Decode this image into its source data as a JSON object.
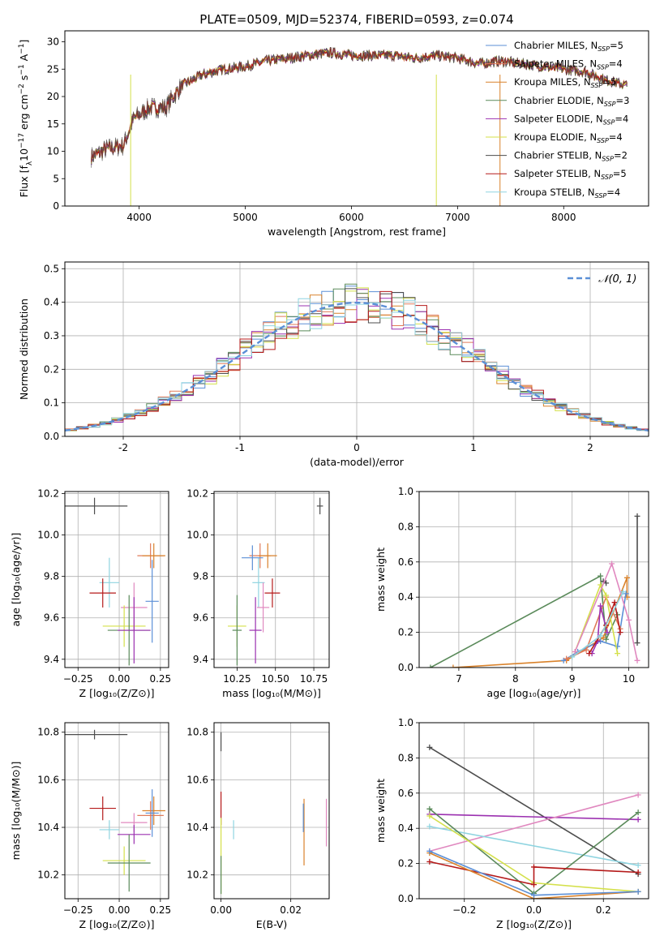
{
  "figure_title": "PLATE=0509, MJD=52374, FIBERID=0593, z=0.074",
  "colors": {
    "Chabrier MILES": "#5b8fd6",
    "Salpeter MILES": "#e07b5a",
    "Kroupa MILES": "#d9822b",
    "Chabrier ELODIE": "#5a8a5a",
    "Salpeter ELODIE": "#9b30b0",
    "Kroupa ELODIE": "#d4e04a",
    "Chabrier STELIB": "#4d4d4d",
    "Salpeter STELIB": "#b51a1a",
    "Kroupa STELIB": "#8fd4e0",
    "gauss": "#5b8fd6",
    "pink": "#e088bf"
  },
  "chart_data": [
    {
      "id": "spectrum",
      "type": "line",
      "xlabel": "wavelength [Angstrom, rest frame]",
      "ylabel_main": "Flux [f",
      "ylabel_sub": "λ",
      "ylabel_rest": "10",
      "ylabel_exp1": "−17",
      "ylabel_unit": " erg cm",
      "ylabel_exp2": "−2",
      "ylabel_s": " s",
      "ylabel_exp3": "−1",
      "ylabel_A": " A",
      "ylabel_exp4": "−1",
      "ylabel_end": "]",
      "xlim": [
        3300,
        8800
      ],
      "ylim": [
        0,
        32
      ],
      "xticks": [
        4000,
        5000,
        6000,
        7000,
        8000
      ],
      "yticks": [
        0,
        5,
        10,
        15,
        20,
        25,
        30
      ],
      "continuum": [
        [
          3550,
          9
        ],
        [
          3700,
          10.5
        ],
        [
          3850,
          11
        ],
        [
          3950,
          16
        ],
        [
          4100,
          18
        ],
        [
          4250,
          18
        ],
        [
          4400,
          22
        ],
        [
          4600,
          24
        ],
        [
          4800,
          25
        ],
        [
          5000,
          25.5
        ],
        [
          5200,
          26.5
        ],
        [
          5400,
          27
        ],
        [
          5600,
          27.5
        ],
        [
          5800,
          28
        ],
        [
          6000,
          27.5
        ],
        [
          6200,
          27.5
        ],
        [
          6400,
          27.5
        ],
        [
          6600,
          27
        ],
        [
          6800,
          27.5
        ],
        [
          7000,
          27
        ],
        [
          7200,
          26
        ],
        [
          7400,
          26.5
        ],
        [
          7600,
          26
        ],
        [
          7800,
          25.5
        ],
        [
          8000,
          25
        ],
        [
          8200,
          24.5
        ],
        [
          8400,
          23
        ],
        [
          8600,
          22
        ]
      ],
      "legend": [
        {
          "key": "Chabrier MILES",
          "label": "Chabrier MILES, N",
          "n": "5"
        },
        {
          "key": "Salpeter MILES",
          "label": "Salpeter MILES, N",
          "n": "4"
        },
        {
          "key": "Kroupa MILES",
          "label": "Kroupa MILES, N",
          "n": "5"
        },
        {
          "key": "Chabrier ELODIE",
          "label": "Chabrier ELODIE, N",
          "n": "3"
        },
        {
          "key": "Salpeter ELODIE",
          "label": "Salpeter ELODIE, N",
          "n": "4"
        },
        {
          "key": "Kroupa ELODIE",
          "label": "Kroupa ELODIE, N",
          "n": "4"
        },
        {
          "key": "Chabrier STELIB",
          "label": "Chabrier STELIB, N",
          "n": "2"
        },
        {
          "key": "Salpeter STELIB",
          "label": "Salpeter STELIB, N",
          "n": "5"
        },
        {
          "key": "Kroupa STELIB",
          "label": "Kroupa STELIB, N",
          "n": "4"
        }
      ],
      "legend_sub": "SSP",
      "legend_placement": "top-right"
    },
    {
      "id": "residuals",
      "type": "histogram",
      "xlabel": "(data-model)/error",
      "ylabel": "Normed distribution",
      "xlim": [
        -2.5,
        2.5
      ],
      "ylim": [
        0,
        0.52
      ],
      "xticks": [
        -2,
        -1,
        0,
        1,
        2
      ],
      "yticks": [
        0.0,
        0.1,
        0.2,
        0.3,
        0.4,
        0.5
      ],
      "grid": true,
      "bin_width": 0.1,
      "legend": "𝒩(0, 1)",
      "legend_placement": "top-right",
      "gaussian": {
        "mu": 0,
        "sigma": 1
      }
    },
    {
      "id": "age_vs_Z",
      "type": "errorbar",
      "xlabel": "Z [log₁₀(Z/Z⊙)]",
      "ylabel": "age  [log₁₀(age/yr)]",
      "xlim": [
        -0.33,
        0.3
      ],
      "ylim": [
        9.36,
        10.21
      ],
      "xticks": [
        -0.25,
        0.0,
        0.25
      ],
      "xticklabels": [
        "−0.25",
        "0.00",
        "0.25"
      ],
      "yticks": [
        9.4,
        9.6,
        9.8,
        10.0,
        10.2
      ],
      "grid": true,
      "points": [
        {
          "c": "Chabrier STELIB",
          "x": -0.15,
          "y": 10.14,
          "xe": 0.2,
          "ye": 0.04
        },
        {
          "c": "Kroupa STELIB",
          "x": -0.06,
          "y": 9.77,
          "xe": 0.06,
          "ye": 0.12
        },
        {
          "c": "Salpeter STELIB",
          "x": -0.1,
          "y": 9.72,
          "xe": 0.08,
          "ye": 0.07
        },
        {
          "c": "pink",
          "x": 0.09,
          "y": 9.65,
          "xe": 0.08,
          "ye": 0.12
        },
        {
          "c": "Kroupa ELODIE",
          "x": 0.03,
          "y": 9.56,
          "xe": 0.13,
          "ye": 0.1
        },
        {
          "c": "Chabrier ELODIE",
          "x": 0.06,
          "y": 9.54,
          "xe": 0.13,
          "ye": 0.17
        },
        {
          "c": "Salpeter ELODIE",
          "x": 0.09,
          "y": 9.54,
          "xe": 0.1,
          "ye": 0.16
        },
        {
          "c": "Salpeter MILES",
          "x": 0.19,
          "y": 9.9,
          "xe": 0.08,
          "ye": 0.06
        },
        {
          "c": "Kroupa MILES",
          "x": 0.21,
          "y": 9.9,
          "xe": 0.07,
          "ye": 0.06
        },
        {
          "c": "Chabrier MILES",
          "x": 0.2,
          "y": 9.68,
          "xe": 0.04,
          "ye": 0.2
        }
      ]
    },
    {
      "id": "age_vs_mass",
      "type": "errorbar",
      "xlabel": "mass [log₁₀(M/M⊙)]",
      "xlim": [
        10.1,
        10.85
      ],
      "ylim": [
        9.36,
        10.21
      ],
      "xticks": [
        10.25,
        10.5,
        10.75
      ],
      "xticklabels": [
        "10.25",
        "10.50",
        "10.75"
      ],
      "yticks": [
        9.4,
        9.6,
        9.8,
        10.0,
        10.2
      ],
      "grid": true,
      "points": [
        {
          "c": "Chabrier STELIB",
          "x": 10.79,
          "y": 10.14,
          "xe": 0.02,
          "ye": 0.04
        },
        {
          "c": "Kroupa STELIB",
          "x": 10.39,
          "y": 9.77,
          "xe": 0.04,
          "ye": 0.12
        },
        {
          "c": "Salpeter STELIB",
          "x": 10.48,
          "y": 9.72,
          "xe": 0.05,
          "ye": 0.07
        },
        {
          "c": "pink",
          "x": 10.42,
          "y": 9.65,
          "xe": 0.04,
          "ye": 0.12
        },
        {
          "c": "Kroupa ELODIE",
          "x": 10.25,
          "y": 9.56,
          "xe": 0.06,
          "ye": 0.1
        },
        {
          "c": "Chabrier ELODIE",
          "x": 10.25,
          "y": 9.54,
          "xe": 0.03,
          "ye": 0.17
        },
        {
          "c": "Salpeter ELODIE",
          "x": 10.37,
          "y": 9.54,
          "xe": 0.04,
          "ye": 0.16
        },
        {
          "c": "Salpeter MILES",
          "x": 10.4,
          "y": 9.9,
          "xe": 0.07,
          "ye": 0.06
        },
        {
          "c": "Kroupa MILES",
          "x": 10.45,
          "y": 9.9,
          "xe": 0.06,
          "ye": 0.06
        },
        {
          "c": "Chabrier MILES",
          "x": 10.35,
          "y": 9.89,
          "xe": 0.07,
          "ye": 0.06
        }
      ]
    },
    {
      "id": "weight_vs_age",
      "type": "line",
      "xlabel": "age  [log₁₀(age/yr)]",
      "ylabel": "mass weight",
      "xlim": [
        6.3,
        10.35
      ],
      "ylim": [
        0,
        1
      ],
      "xticks": [
        7,
        8,
        9,
        10
      ],
      "yticks": [
        0.0,
        0.2,
        0.4,
        0.6,
        0.8,
        1.0
      ],
      "grid": true,
      "series": [
        {
          "c": "Chabrier ELODIE",
          "pts": [
            [
              6.5,
              0.0
            ],
            [
              9.5,
              0.52
            ],
            [
              9.6,
              0.16
            ],
            [
              9.8,
              0.3
            ]
          ]
        },
        {
          "c": "Kroupa MILES",
          "pts": [
            [
              6.9,
              0.0
            ],
            [
              8.9,
              0.04
            ],
            [
              9.55,
              0.17
            ],
            [
              9.97,
              0.51
            ],
            [
              9.97,
              0.4
            ]
          ]
        },
        {
          "c": "Chabrier MILES",
          "pts": [
            [
              8.85,
              0.04
            ],
            [
              9.1,
              0.09
            ],
            [
              9.5,
              0.15
            ],
            [
              9.8,
              0.12
            ],
            [
              9.95,
              0.42
            ]
          ]
        },
        {
          "c": "Salpeter MILES",
          "pts": [
            [
              8.9,
              0.05
            ],
            [
              9.25,
              0.1
            ],
            [
              9.6,
              0.4
            ],
            [
              9.85,
              0.22
            ]
          ]
        },
        {
          "c": "Salpeter ELODIE",
          "pts": [
            [
              9.35,
              0.08
            ],
            [
              9.45,
              0.15
            ],
            [
              9.5,
              0.35
            ],
            [
              9.62,
              0.2
            ]
          ]
        },
        {
          "c": "Kroupa ELODIE",
          "pts": [
            [
              9.05,
              0.09
            ],
            [
              9.5,
              0.47
            ],
            [
              9.6,
              0.41
            ],
            [
              9.8,
              0.08
            ]
          ]
        },
        {
          "c": "Salpeter STELIB",
          "pts": [
            [
              9.3,
              0.08
            ],
            [
              9.6,
              0.24
            ],
            [
              9.75,
              0.37
            ],
            [
              9.85,
              0.2
            ]
          ]
        },
        {
          "c": "Chabrier STELIB",
          "pts": [
            [
              9.55,
              0.49
            ],
            [
              9.6,
              0.48
            ]
          ]
        },
        {
          "c": "Chabrier STELIB",
          "pts": [
            [
              10.15,
              0.86
            ],
            [
              10.15,
              0.14
            ]
          ]
        },
        {
          "c": "pink",
          "pts": [
            [
              9.05,
              0.09
            ],
            [
              9.7,
              0.59
            ],
            [
              10.0,
              0.27
            ],
            [
              10.15,
              0.04
            ]
          ]
        },
        {
          "c": "Kroupa STELIB",
          "pts": [
            [
              9.0,
              0.06
            ],
            [
              9.5,
              0.18
            ],
            [
              9.9,
              0.43
            ]
          ]
        }
      ]
    },
    {
      "id": "mass_vs_Z",
      "type": "errorbar",
      "xlabel": "Z [log₁₀(Z/Z⊙)]",
      "ylabel": "mass [log₁₀(M/M⊙)]",
      "xlim": [
        -0.33,
        0.3
      ],
      "ylim": [
        10.1,
        10.84
      ],
      "xticks": [
        -0.25,
        0.0,
        0.25
      ],
      "xticklabels": [
        "−0.25",
        "0.00",
        "0.25"
      ],
      "yticks": [
        10.2,
        10.4,
        10.6,
        10.8
      ],
      "grid": true,
      "points": [
        {
          "c": "Chabrier STELIB",
          "x": -0.15,
          "y": 10.79,
          "xe": 0.2,
          "ye": 0.02
        },
        {
          "c": "Salpeter STELIB",
          "x": -0.1,
          "y": 10.48,
          "xe": 0.08,
          "ye": 0.05
        },
        {
          "c": "Kroupa STELIB",
          "x": -0.06,
          "y": 10.39,
          "xe": 0.06,
          "ye": 0.04
        },
        {
          "c": "pink",
          "x": 0.09,
          "y": 10.42,
          "xe": 0.08,
          "ye": 0.04
        },
        {
          "c": "Salpeter ELODIE",
          "x": 0.09,
          "y": 10.37,
          "xe": 0.1,
          "ye": 0.04
        },
        {
          "c": "Kroupa ELODIE",
          "x": 0.03,
          "y": 10.26,
          "xe": 0.13,
          "ye": 0.06
        },
        {
          "c": "Chabrier ELODIE",
          "x": 0.06,
          "y": 10.25,
          "xe": 0.13,
          "ye": 0.12
        },
        {
          "c": "Kroupa MILES",
          "x": 0.21,
          "y": 10.47,
          "xe": 0.07,
          "ye": 0.06
        },
        {
          "c": "Salpeter MILES",
          "x": 0.19,
          "y": 10.45,
          "xe": 0.08,
          "ye": 0.06
        },
        {
          "c": "Chabrier MILES",
          "x": 0.2,
          "y": 10.46,
          "xe": 0.04,
          "ye": 0.1
        }
      ]
    },
    {
      "id": "mass_vs_EBV",
      "type": "errorbar",
      "xlabel": "E(B-V)",
      "xlim": [
        -0.002,
        0.031
      ],
      "ylim": [
        10.1,
        10.84
      ],
      "xticks": [
        0.0,
        0.02
      ],
      "xticklabels": [
        "0.00",
        "0.02"
      ],
      "yticks": [
        10.2,
        10.4,
        10.6,
        10.8
      ],
      "grid": true,
      "points": [
        {
          "c": "Chabrier STELIB",
          "x": 0.0,
          "y": 10.76,
          "xe": 0,
          "ye": 0.04
        },
        {
          "c": "Salpeter STELIB",
          "x": 0.0,
          "y": 10.48,
          "xe": 0,
          "ye": 0.07
        },
        {
          "c": "Kroupa ELODIE",
          "x": 0.0,
          "y": 10.28,
          "xe": 0,
          "ye": 0.16
        },
        {
          "c": "Chabrier ELODIE",
          "x": 0.0,
          "y": 10.2,
          "xe": 0,
          "ye": 0.08
        },
        {
          "c": "Kroupa STELIB",
          "x": 0.0036,
          "y": 10.39,
          "xe": 0,
          "ye": 0.04
        },
        {
          "c": "Kroupa MILES",
          "x": 0.0238,
          "y": 10.38,
          "xe": 0,
          "ye": 0.14
        },
        {
          "c": "Chabrier MILES",
          "x": 0.0236,
          "y": 10.44,
          "xe": 0,
          "ye": 0.06
        },
        {
          "c": "pink",
          "x": 0.0302,
          "y": 10.42,
          "xe": 0,
          "ye": 0.1
        }
      ]
    },
    {
      "id": "weight_vs_Z",
      "type": "line",
      "xlabel": "Z [log₁₀(Z/Z⊙)]",
      "ylabel": "mass weight",
      "xlim": [
        -0.33,
        0.33
      ],
      "ylim": [
        0,
        1
      ],
      "xticks": [
        -0.2,
        0.0,
        0.2
      ],
      "xticklabels": [
        "−0.2",
        "0.0",
        "0.2"
      ],
      "yticks": [
        0.0,
        0.2,
        0.4,
        0.6,
        0.8,
        1.0
      ],
      "grid": true,
      "series": [
        {
          "c": "Chabrier STELIB",
          "pts": [
            [
              -0.3,
              0.86
            ],
            [
              0.3,
              0.14
            ]
          ]
        },
        {
          "c": "Salpeter ELODIE",
          "pts": [
            [
              -0.3,
              0.48
            ],
            [
              0.3,
              0.45
            ]
          ]
        },
        {
          "c": "pink",
          "pts": [
            [
              -0.3,
              0.27
            ],
            [
              0.3,
              0.59
            ]
          ]
        },
        {
          "c": "Kroupa STELIB",
          "pts": [
            [
              -0.3,
              0.41
            ],
            [
              0.3,
              0.19
            ]
          ]
        },
        {
          "c": "Chabrier ELODIE",
          "pts": [
            [
              -0.3,
              0.51
            ],
            [
              0.0,
              0.03
            ],
            [
              0.3,
              0.49
            ]
          ]
        },
        {
          "c": "Kroupa ELODIE",
          "pts": [
            [
              -0.3,
              0.47
            ],
            [
              0.0,
              0.09
            ],
            [
              0.3,
              0.04
            ]
          ]
        },
        {
          "c": "Salpeter STELIB",
          "pts": [
            [
              -0.3,
              0.21
            ],
            [
              0.0,
              0.08
            ],
            [
              0.0,
              0.18
            ],
            [
              0.3,
              0.15
            ]
          ]
        },
        {
          "c": "Kroupa MILES",
          "pts": [
            [
              -0.3,
              0.26
            ],
            [
              0.0,
              0.0
            ],
            [
              0.3,
              0.04
            ]
          ]
        },
        {
          "c": "Chabrier MILES",
          "pts": [
            [
              -0.3,
              0.27
            ],
            [
              0.0,
              0.02
            ],
            [
              0.3,
              0.04
            ]
          ]
        }
      ]
    }
  ]
}
